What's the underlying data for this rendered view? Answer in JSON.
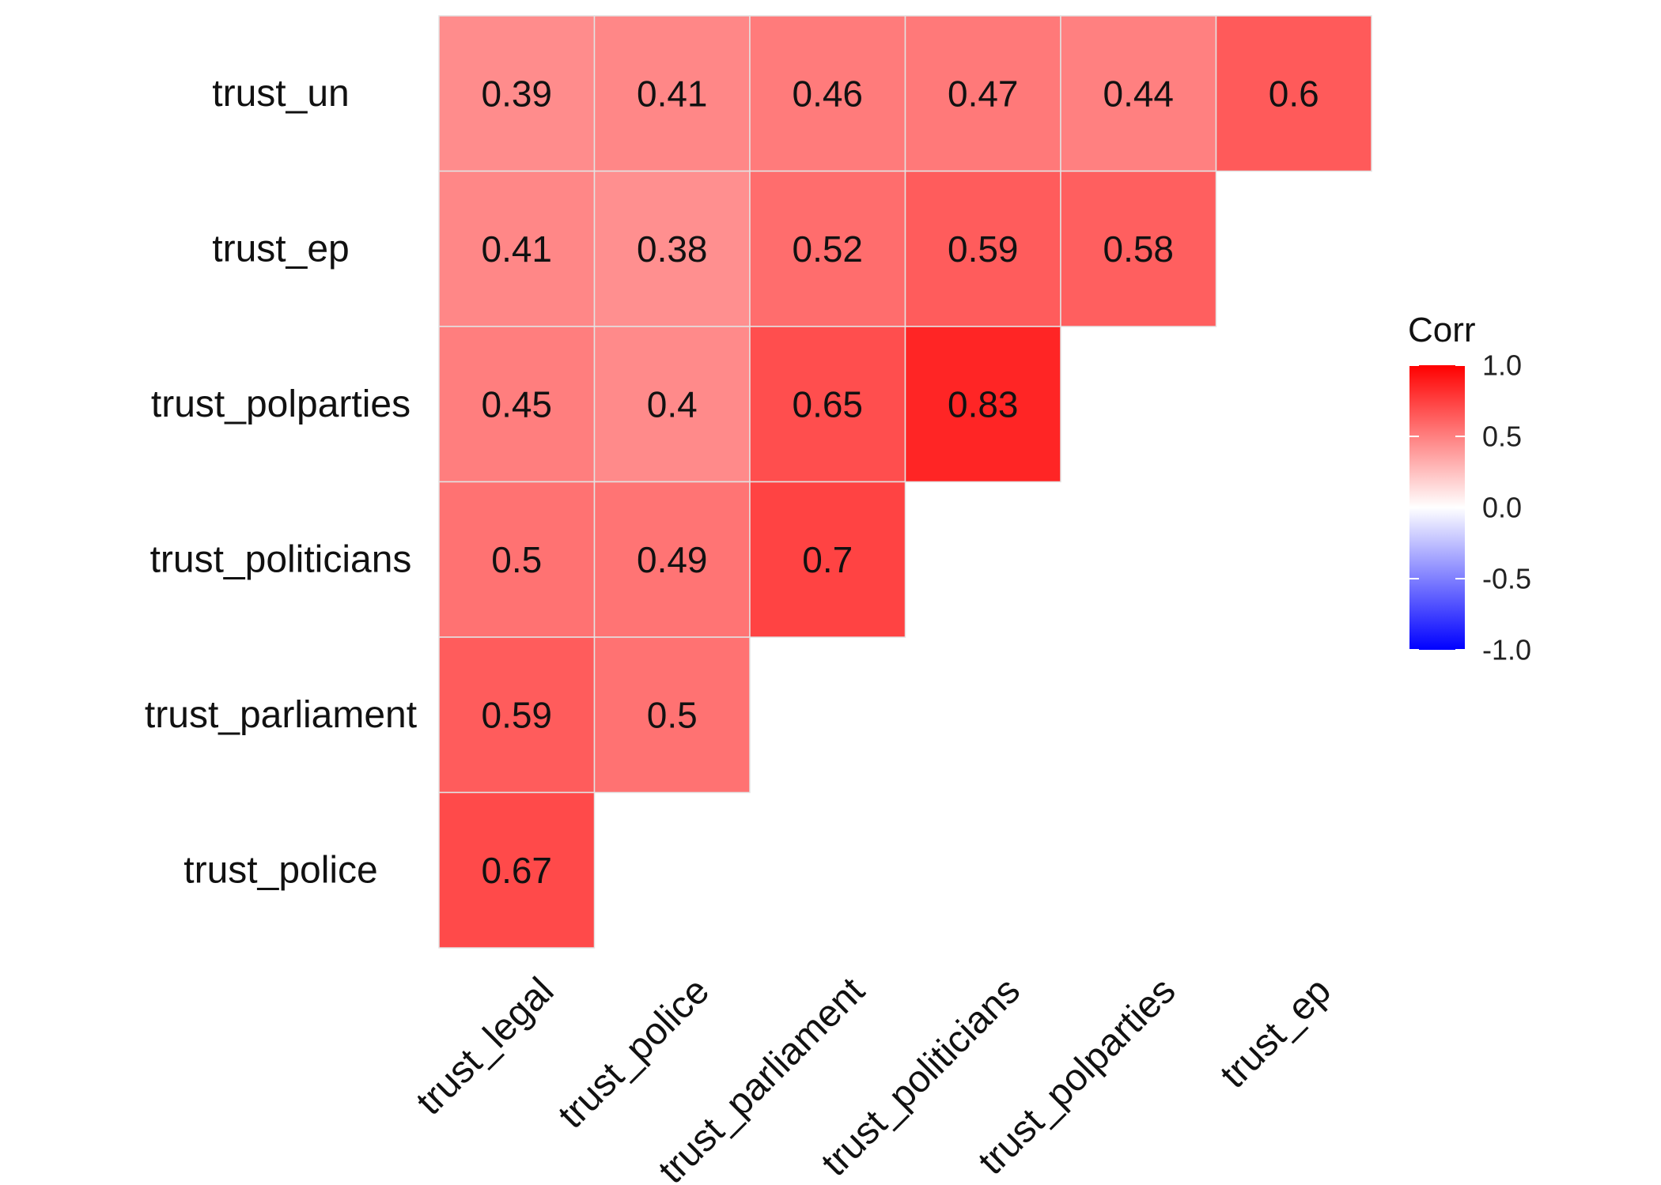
{
  "chart_data": {
    "type": "heatmap",
    "rows": [
      "trust_un",
      "trust_ep",
      "trust_polparties",
      "trust_politicians",
      "trust_parliament",
      "trust_police"
    ],
    "columns": [
      "trust_legal",
      "trust_police",
      "trust_parliament",
      "trust_politicians",
      "trust_polparties",
      "trust_ep"
    ],
    "values": [
      [
        0.39,
        0.41,
        0.46,
        0.47,
        0.44,
        0.6
      ],
      [
        0.41,
        0.38,
        0.52,
        0.59,
        0.58,
        null
      ],
      [
        0.45,
        0.4,
        0.65,
        0.83,
        null,
        null
      ],
      [
        0.5,
        0.49,
        0.7,
        null,
        null,
        null
      ],
      [
        0.59,
        0.5,
        null,
        null,
        null,
        null
      ],
      [
        0.67,
        null,
        null,
        null,
        null,
        null
      ]
    ],
    "value_labels": [
      [
        "0.39",
        "0.41",
        "0.46",
        "0.47",
        "0.44",
        "0.6"
      ],
      [
        "0.41",
        "0.38",
        "0.52",
        "0.59",
        "0.58",
        null
      ],
      [
        "0.45",
        "0.4",
        "0.65",
        "0.83",
        null,
        null
      ],
      [
        "0.5",
        "0.49",
        "0.7",
        null,
        null,
        null
      ],
      [
        "0.59",
        "0.5",
        null,
        null,
        null,
        null
      ],
      [
        "0.67",
        null,
        null,
        null,
        null,
        null
      ]
    ],
    "legend": {
      "title": "Corr",
      "position": "right",
      "range": [
        -1,
        1
      ],
      "ticks": [
        1.0,
        0.5,
        0.0,
        -0.5,
        -1.0
      ],
      "tick_labels": [
        "1.0",
        "0.5",
        "0.0",
        "-0.5",
        "-1.0"
      ],
      "colors": {
        "high": "#FF0000",
        "mid": "#FFFFFF",
        "low": "#0000FF"
      }
    },
    "grid": false
  }
}
